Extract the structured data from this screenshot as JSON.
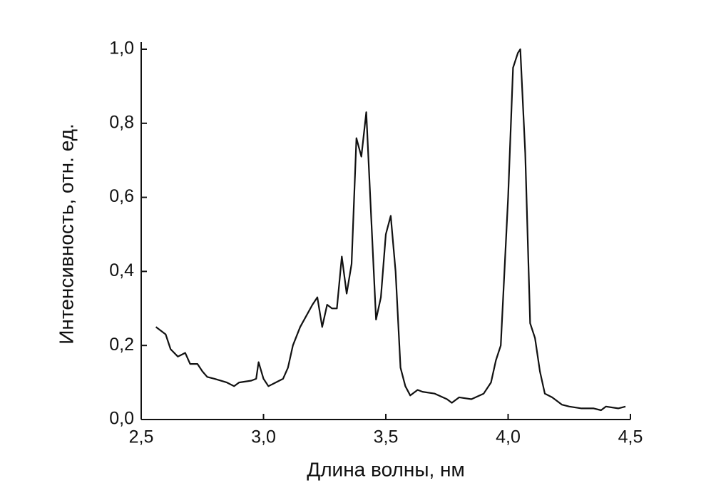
{
  "chart_data": {
    "type": "line",
    "x_label": "Длина волны, нм",
    "y_label": "Интенсивность, отн. ед.",
    "xlim": [
      2.5,
      4.5
    ],
    "xticks": [
      {
        "value": 2.5,
        "label": "2,5"
      },
      {
        "value": 3.0,
        "label": "3,0"
      },
      {
        "value": 3.5,
        "label": "3,5"
      },
      {
        "value": 4.0,
        "label": "4,0"
      },
      {
        "value": 4.5,
        "label": "4,5"
      }
    ],
    "ylim": [
      0,
      1.0
    ],
    "yticks": [
      {
        "value": 0,
        "label": "0,0"
      },
      {
        "value": 0.2,
        "label": "0,2"
      },
      {
        "value": 0.4,
        "label": "0,4"
      },
      {
        "value": 0.6,
        "label": "0,6"
      },
      {
        "value": 0.8,
        "label": "0,8"
      },
      {
        "value": 1.0,
        "label": "1,0"
      }
    ],
    "grid": false,
    "series": [
      {
        "color": "#111111",
        "x": [
          2.56,
          2.6,
          2.62,
          2.65,
          2.68,
          2.7,
          2.73,
          2.75,
          2.77,
          2.8,
          2.85,
          2.88,
          2.9,
          2.95,
          2.97,
          2.98,
          3.0,
          3.02,
          3.05,
          3.08,
          3.1,
          3.12,
          3.15,
          3.2,
          3.22,
          3.24,
          3.26,
          3.28,
          3.3,
          3.32,
          3.34,
          3.36,
          3.38,
          3.4,
          3.42,
          3.44,
          3.46,
          3.48,
          3.5,
          3.52,
          3.54,
          3.56,
          3.58,
          3.6,
          3.63,
          3.65,
          3.7,
          3.75,
          3.77,
          3.8,
          3.85,
          3.9,
          3.93,
          3.95,
          3.97,
          4.0,
          4.02,
          4.04,
          4.05,
          4.07,
          4.09,
          4.11,
          4.13,
          4.15,
          4.18,
          4.2,
          4.22,
          4.25,
          4.3,
          4.35,
          4.38,
          4.4,
          4.45,
          4.48
        ],
        "values": [
          0.25,
          0.23,
          0.19,
          0.17,
          0.18,
          0.15,
          0.15,
          0.13,
          0.115,
          0.11,
          0.1,
          0.09,
          0.1,
          0.105,
          0.11,
          0.155,
          0.11,
          0.09,
          0.1,
          0.11,
          0.14,
          0.2,
          0.25,
          0.31,
          0.33,
          0.25,
          0.31,
          0.3,
          0.3,
          0.44,
          0.34,
          0.42,
          0.76,
          0.71,
          0.83,
          0.55,
          0.27,
          0.33,
          0.5,
          0.55,
          0.4,
          0.14,
          0.09,
          0.065,
          0.08,
          0.075,
          0.07,
          0.055,
          0.045,
          0.06,
          0.055,
          0.07,
          0.1,
          0.16,
          0.2,
          0.6,
          0.95,
          0.99,
          1.0,
          0.72,
          0.26,
          0.22,
          0.13,
          0.07,
          0.06,
          0.05,
          0.04,
          0.035,
          0.03,
          0.03,
          0.025,
          0.035,
          0.03,
          0.035
        ]
      }
    ]
  }
}
